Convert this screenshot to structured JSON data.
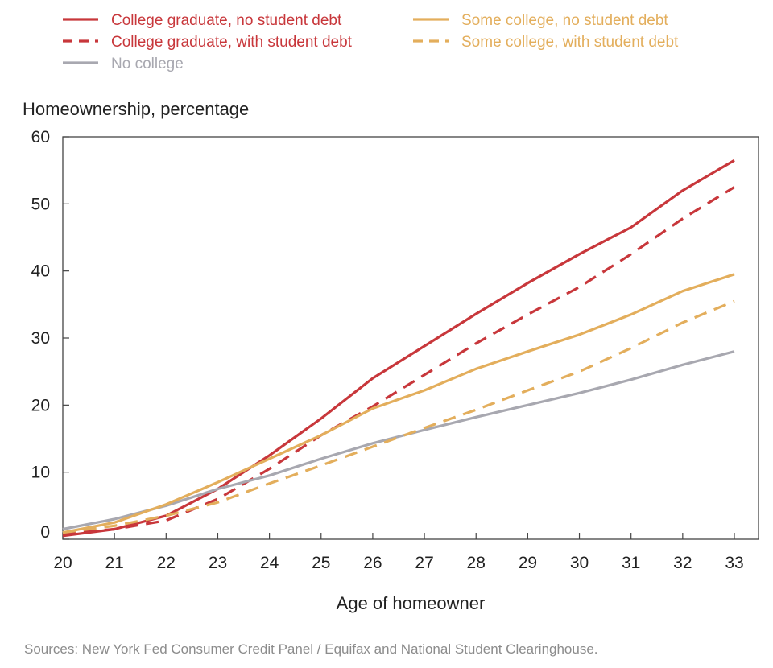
{
  "chart_data": {
    "type": "line",
    "ylabel": "Homeownership, percentage",
    "xlabel": "Age of homeowner",
    "x": [
      20,
      21,
      22,
      23,
      24,
      25,
      26,
      27,
      28,
      29,
      30,
      31,
      32,
      33
    ],
    "xlim": [
      20,
      33
    ],
    "ylim": [
      0,
      60
    ],
    "yticks": [
      0,
      10,
      20,
      30,
      40,
      50,
      60
    ],
    "grid": false,
    "legend_position": "top",
    "series": [
      {
        "name": "College graduate, no student debt",
        "color": "#c8373b",
        "dash": "solid",
        "values": [
          0.5,
          1.5,
          3.5,
          7.5,
          12.5,
          18.0,
          24.0,
          28.8,
          33.6,
          38.2,
          42.5,
          46.5,
          52.0,
          56.5
        ]
      },
      {
        "name": "College graduate, with student debt",
        "color": "#c8373b",
        "dash": "dashed",
        "values": [
          0.8,
          1.5,
          2.8,
          6.0,
          10.5,
          15.5,
          19.8,
          24.5,
          29.2,
          33.5,
          37.6,
          42.5,
          47.8,
          52.5
        ]
      },
      {
        "name": "No college",
        "color": "#a8a8b0",
        "dash": "solid",
        "values": [
          1.5,
          3.0,
          5.0,
          7.5,
          9.5,
          12.0,
          14.3,
          16.3,
          18.2,
          20.0,
          21.8,
          23.8,
          26.0,
          28.0
        ]
      },
      {
        "name": "Some college, no student debt",
        "color": "#e3ae5c",
        "dash": "solid",
        "values": [
          1.0,
          2.5,
          5.2,
          8.5,
          12.0,
          15.5,
          19.5,
          22.2,
          25.4,
          28.0,
          30.5,
          33.5,
          37.0,
          39.5
        ]
      },
      {
        "name": "Some college, with student debt",
        "color": "#e3ae5c",
        "dash": "dashed",
        "values": [
          1.0,
          2.0,
          3.5,
          5.5,
          8.3,
          11.0,
          13.8,
          16.6,
          19.3,
          22.2,
          25.0,
          28.5,
          32.3,
          35.5
        ]
      }
    ],
    "source": "Sources: New York Fed Consumer Credit Panel / Equifax and National Student Clearinghouse."
  }
}
